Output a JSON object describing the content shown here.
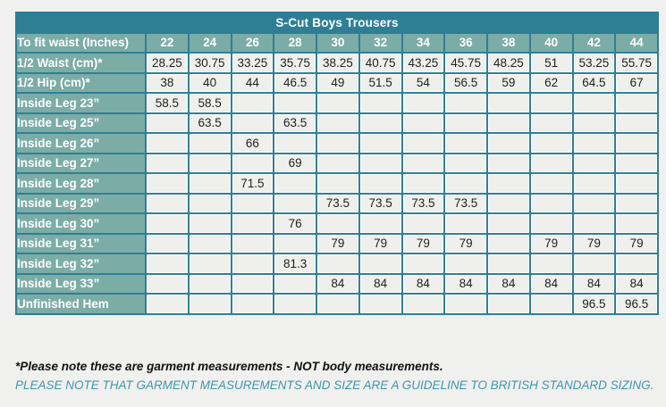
{
  "title": "S-Cut Boys Trousers",
  "table": {
    "header_label": "To fit waist (Inches)",
    "sizes": [
      "22",
      "24",
      "26",
      "28",
      "30",
      "32",
      "34",
      "36",
      "38",
      "40",
      "42",
      "44"
    ],
    "rows": [
      {
        "label": "1/2 Waist (cm)*",
        "values": [
          "28.25",
          "30.75",
          "33.25",
          "35.75",
          "38.25",
          "40.75",
          "43.25",
          "45.75",
          "48.25",
          "51",
          "53.25",
          "55.75"
        ]
      },
      {
        "label": "1/2 Hip (cm)*",
        "values": [
          "38",
          "40",
          "44",
          "46.5",
          "49",
          "51.5",
          "54",
          "56.5",
          "59",
          "62",
          "64.5",
          "67"
        ]
      },
      {
        "label": "Inside Leg 23”",
        "values": [
          "58.5",
          "58.5",
          "",
          "",
          "",
          "",
          "",
          "",
          "",
          "",
          "",
          ""
        ]
      },
      {
        "label": "Inside Leg 25”",
        "values": [
          "",
          "63.5",
          "",
          "63.5",
          "",
          "",
          "",
          "",
          "",
          "",
          "",
          ""
        ]
      },
      {
        "label": "Inside Leg 26”",
        "values": [
          "",
          "",
          "66",
          "",
          "",
          "",
          "",
          "",
          "",
          "",
          "",
          ""
        ]
      },
      {
        "label": "Inside Leg 27”",
        "values": [
          "",
          "",
          "",
          "69",
          "",
          "",
          "",
          "",
          "",
          "",
          "",
          ""
        ]
      },
      {
        "label": "Inside Leg 28”",
        "values": [
          "",
          "",
          "71.5",
          "",
          "",
          "",
          "",
          "",
          "",
          "",
          "",
          ""
        ]
      },
      {
        "label": "Inside Leg 29”",
        "values": [
          "",
          "",
          "",
          "",
          "73.5",
          "73.5",
          "73.5",
          "73.5",
          "",
          "",
          "",
          ""
        ]
      },
      {
        "label": "Inside Leg 30”",
        "values": [
          "",
          "",
          "",
          "76",
          "",
          "",
          "",
          "",
          "",
          "",
          "",
          ""
        ]
      },
      {
        "label": "Inside Leg 31”",
        "values": [
          "",
          "",
          "",
          "",
          "79",
          "79",
          "79",
          "79",
          "",
          "79",
          "79",
          "79"
        ]
      },
      {
        "label": "Inside Leg 32”",
        "values": [
          "",
          "",
          "",
          "81.3",
          "",
          "",
          "",
          "",
          "",
          "",
          "",
          ""
        ]
      },
      {
        "label": "Inside Leg 33”",
        "values": [
          "",
          "",
          "",
          "",
          "84",
          "84",
          "84",
          "84",
          "84",
          "84",
          "84",
          "84"
        ]
      },
      {
        "label": "Unfinished Hem",
        "values": [
          "",
          "",
          "",
          "",
          "",
          "",
          "",
          "",
          "",
          "",
          "96.5",
          "96.5"
        ]
      }
    ]
  },
  "notes": {
    "primary": "*Please note these are garment measurements - NOT body measurements.",
    "secondary": "PLEASE NOTE THAT GARMENT MEASUREMENTS AND SIZE ARE A GUIDELINE TO BRITISH STANDARD SIZING."
  },
  "colors": {
    "title_bar": "#2e7f96",
    "grid_border": "#2e7f96",
    "label_cell": "#7caca6",
    "value_cell": "#efefec",
    "page_background": "#f0f0ee",
    "note_secondary_text": "#3e96ac"
  }
}
